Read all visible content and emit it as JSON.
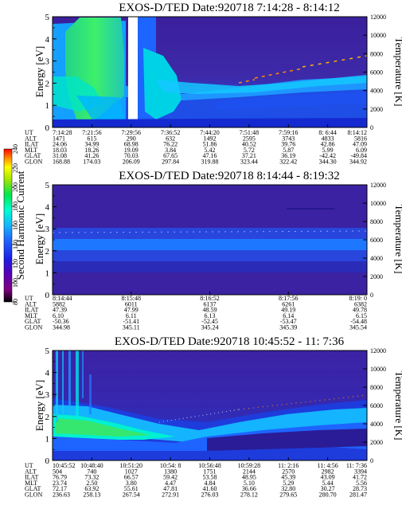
{
  "chart_data": [
    {
      "type": "heatmap",
      "title": "EXOS-D/TED   Date:920718   7:14:28 - 8:14:12",
      "ylabel": "Energy [eV]",
      "y2label": "Temperature [K]",
      "ylim": [
        0,
        5
      ],
      "y2lim": [
        0,
        12000
      ],
      "yticks": [
        "0",
        "1",
        "2",
        "3",
        "4",
        "5"
      ],
      "y2ticks": [
        "0",
        "2000",
        "4000",
        "6000",
        "8000",
        "10000",
        "12000"
      ],
      "table": {
        "rows": [
          [
            "UT",
            "7:14:28",
            "7:21:56",
            "7:29:56",
            "7:36:52",
            "7:44:20",
            "7:51:48",
            "7:59:16",
            "8: 6:44",
            "8:14:12"
          ],
          [
            "ALT",
            "1471",
            "615",
            "290",
            "632",
            "1492",
            "2595",
            "3743",
            "4833",
            "5816"
          ],
          [
            "ILAT",
            "24.06",
            "34.99",
            "68.98",
            "76.22",
            "51.86",
            "40.52",
            "39.76",
            "42.86",
            "47.09"
          ],
          [
            "MLT",
            "18.03",
            "18.26",
            "19.09",
            "3.84",
            "5.42",
            "5.72",
            "5.87",
            "5.99",
            "6.09"
          ],
          [
            "GLAT",
            "31.08",
            "41.26",
            "70.03",
            "67.65",
            "47.16",
            "37.21",
            "36.19",
            "-42.42",
            "-49.84"
          ],
          [
            "GLON",
            "168.88",
            "174.03",
            "206.09",
            "297.84",
            "319.88",
            "323.44",
            "322.42",
            "344.30",
            "344.92"
          ]
        ]
      }
    },
    {
      "type": "heatmap",
      "title": "EXOS-D/TED   Date:920718   8:14:44 - 8:19:32",
      "ylabel": "Energy [eV]",
      "y2label": "Temperature [K]",
      "ylim": [
        0,
        5
      ],
      "y2lim": [
        0,
        12000
      ],
      "yticks": [
        "0",
        "1",
        "2",
        "3",
        "4",
        "5"
      ],
      "y2ticks": [
        "0",
        "2000",
        "4000",
        "6000",
        "8000",
        "10000",
        "12000"
      ],
      "table": {
        "rows": [
          [
            "UT",
            "8:14:44",
            "8:15:48",
            "8:16:52",
            "8:17:56",
            "8:19: 0"
          ],
          [
            "ALT",
            "5882",
            "6011",
            "6137",
            "6261",
            "6382"
          ],
          [
            "ILAT",
            "47.39",
            "47.99",
            "48.59",
            "49.19",
            "49.78"
          ],
          [
            "MLT",
            "6.10",
            "6.11",
            "6.13",
            "6.14",
            "6.15"
          ],
          [
            "GLAT",
            "-50.36",
            "-51.41",
            "-52.45",
            "-53.47",
            "-54.48"
          ],
          [
            "GLON",
            "344.98",
            "345.11",
            "345.24",
            "345.39",
            "345.54"
          ]
        ]
      }
    },
    {
      "type": "heatmap",
      "title": "EXOS-D/TED   Date:920718   10:45:52 - 11: 7:36",
      "ylabel": "Energy [eV]",
      "y2label": "Temperature [K]",
      "ylim": [
        0,
        5
      ],
      "y2lim": [
        0,
        12000
      ],
      "yticks": [
        "0",
        "1",
        "2",
        "3",
        "4",
        "5"
      ],
      "y2ticks": [
        "0",
        "2000",
        "4000",
        "6000",
        "8000",
        "10000",
        "12000"
      ],
      "table": {
        "rows": [
          [
            "UT",
            "10:45:52",
            "10:48:40",
            "10:51:20",
            "10:54: 8",
            "10:56:48",
            "10:59:28",
            "11: 2:16",
            "11: 4:56",
            "11: 7:36"
          ],
          [
            "ALT",
            "504",
            "740",
            "1027",
            "1380",
            "1751",
            "2144",
            "2570",
            "2982",
            "3394"
          ],
          [
            "ILAT",
            "76.79",
            "73.32",
            "66.57",
            "59.42",
            "53.58",
            "48.95",
            "45.39",
            "43.09",
            "41.72"
          ],
          [
            "MLT",
            "23.74",
            "2.50",
            "3.80",
            "4.47",
            "4.84",
            "5.10",
            "5.29",
            "5.44",
            "5.56"
          ],
          [
            "GLAT",
            "72.17",
            "63.92",
            "55.61",
            "47.81",
            "41.60",
            "36.66",
            "32.80",
            "30.27",
            "28.73"
          ],
          [
            "GLON",
            "236.63",
            "258.13",
            "267.54",
            "272.91",
            "276.03",
            "278.12",
            "279.65",
            "280.70",
            "281.47"
          ]
        ]
      }
    }
  ],
  "colorbar": {
    "label": "Second Harmonic Current",
    "ticks": [
      "80",
      "100",
      "120",
      "140",
      "160",
      "180",
      "200",
      "220",
      "240"
    ],
    "colors": [
      "#000000",
      "#800080",
      "#5a00b4",
      "#1e1ee6",
      "#1e64ff",
      "#14b4ff",
      "#00ffd2",
      "#00e650",
      "#a0e600",
      "#ffff00",
      "#ff8c00",
      "#ff0000"
    ]
  }
}
